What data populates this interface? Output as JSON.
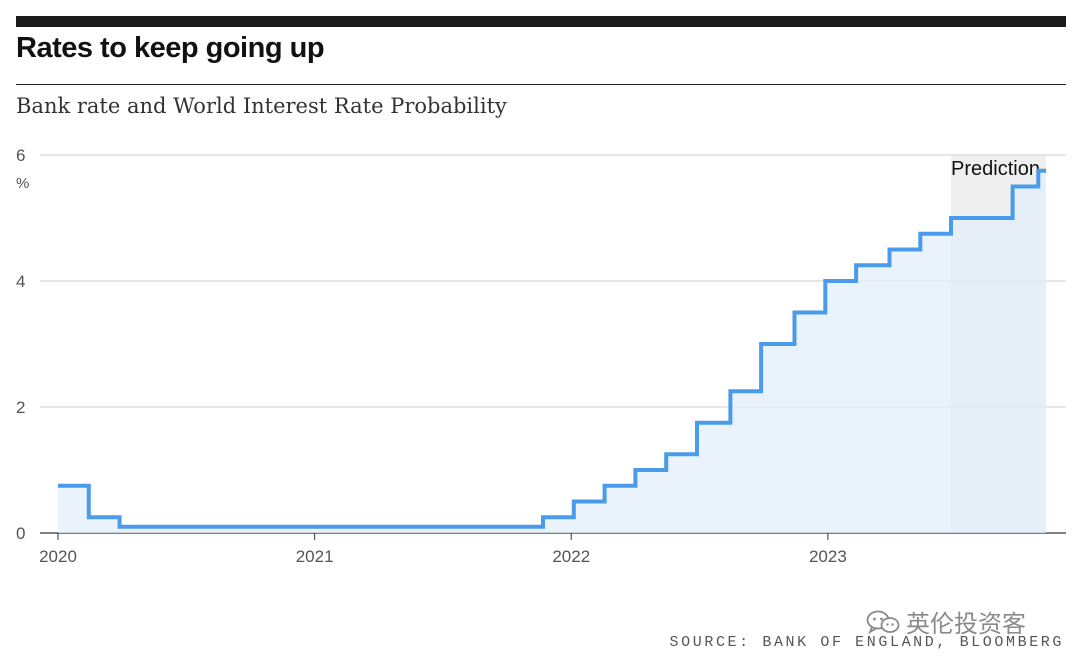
{
  "header": {
    "title": "Rates to keep going up",
    "subtitle": "Bank rate and World Interest Rate Probability"
  },
  "footer": {
    "source": "SOURCE: BANK OF ENGLAND, BLOOMBERG",
    "watermark": "英伦投资客",
    "watermark_icon": "wechat-icon"
  },
  "colors": {
    "line": "#4a9bea",
    "area": "#e3effb",
    "prediction_band": "#efefef",
    "grid": "#cccccc"
  },
  "chart_data": {
    "type": "area",
    "ylabel": "%",
    "ylim": [
      0,
      6
    ],
    "yticks": [
      0,
      2,
      4,
      6
    ],
    "xlim": [
      2020.0,
      2023.85
    ],
    "xticks": [
      {
        "value": 2020,
        "label": "2020"
      },
      {
        "value": 2021,
        "label": "2021"
      },
      {
        "value": 2022,
        "label": "2022"
      },
      {
        "value": 2023,
        "label": "2023"
      }
    ],
    "step": "post",
    "series": [
      {
        "x": [
          2020.0,
          2020.12,
          2020.24,
          2021.89,
          2022.01,
          2022.13,
          2022.25,
          2022.37,
          2022.49,
          2022.62,
          2022.74,
          2022.87,
          2022.99,
          2023.11,
          2023.24,
          2023.36,
          2023.48,
          2023.72
        ],
        "values": [
          0.75,
          0.25,
          0.1,
          0.25,
          0.5,
          0.75,
          1.0,
          1.25,
          1.75,
          2.25,
          3.0,
          3.5,
          4.0,
          4.25,
          4.5,
          4.75,
          5.0,
          5.5
        ],
        "end_value": 5.75
      }
    ],
    "prediction": {
      "label": "Prediction",
      "x_start": 2023.48,
      "x_end": 2023.85
    },
    "grid": true
  }
}
